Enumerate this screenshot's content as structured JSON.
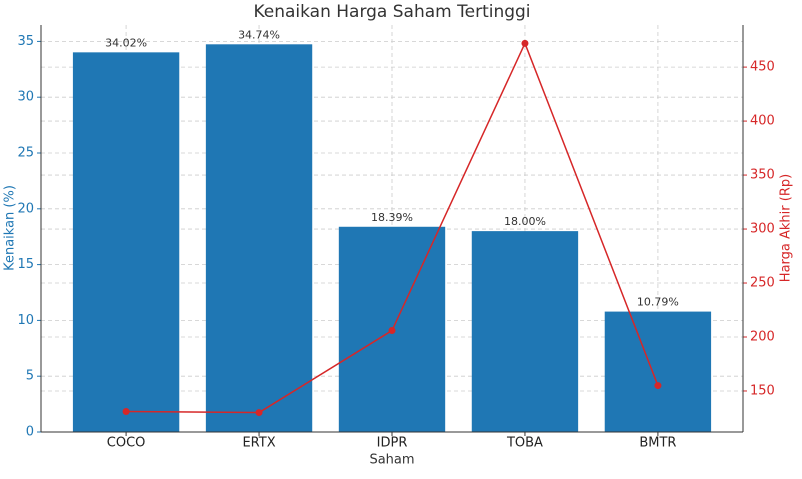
{
  "chart_data": {
    "type": "bar",
    "title": "Kenaikan Harga Saham Tertinggi",
    "xlabel": "Saham",
    "ylabel": "Kenaikan (%)",
    "y2label": "Harga Akhir (Rp)",
    "categories": [
      "COCO",
      "ERTX",
      "IDPR",
      "TOBA",
      "BMTR"
    ],
    "series": [
      {
        "type": "bar",
        "color": "#1f77b4",
        "values": [
          34.02,
          34.74,
          18.39,
          18.0,
          10.79
        ],
        "value_labels": [
          "34.02%",
          "34.74%",
          "18.39%",
          "18.00%",
          "10.79%"
        ]
      },
      {
        "type": "line",
        "axis": "y2",
        "color": "#d62728",
        "values": [
          131,
          130,
          206,
          472,
          155
        ]
      }
    ],
    "ylim": [
      0,
      36.47
    ],
    "yticks": [
      0,
      5,
      10,
      15,
      20,
      25,
      30,
      35
    ],
    "y2lim": [
      112,
      489
    ],
    "y2ticks": [
      150,
      200,
      250,
      300,
      350,
      400,
      450
    ],
    "grid": true
  }
}
